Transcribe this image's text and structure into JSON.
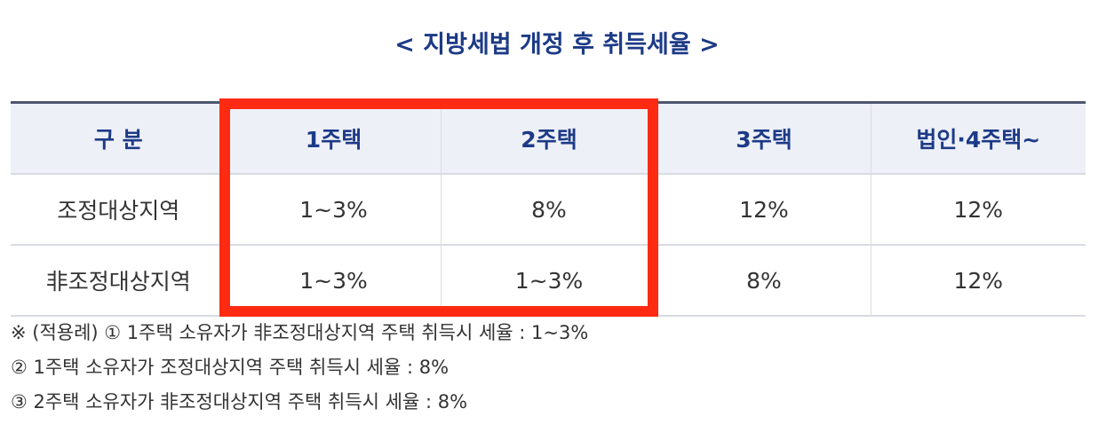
{
  "title": "< 지방세법 개정 후 취득세율 >",
  "table": {
    "headers": [
      "구 분",
      "1주택",
      "2주택",
      "3주택",
      "법인·4주택~"
    ],
    "rows": [
      [
        "조정대상지역",
        "1~3%",
        "8%",
        "12%",
        "12%"
      ],
      [
        "非조정대상지역",
        "1~3%",
        "1~3%",
        "8%",
        "12%"
      ]
    ]
  },
  "highlight_color": "#ff2a12",
  "notes": [
    "※ (적용례) ① 1주택 소유자가 非조정대상지역 주택 취득시 세율 : 1~3%",
    "② 1주택 소유자가 조정대상지역 주택 취득시 세율 : 8%",
    "③ 2주택 소유자가 非조정대상지역 주택 취득시 세율 : 8%"
  ]
}
